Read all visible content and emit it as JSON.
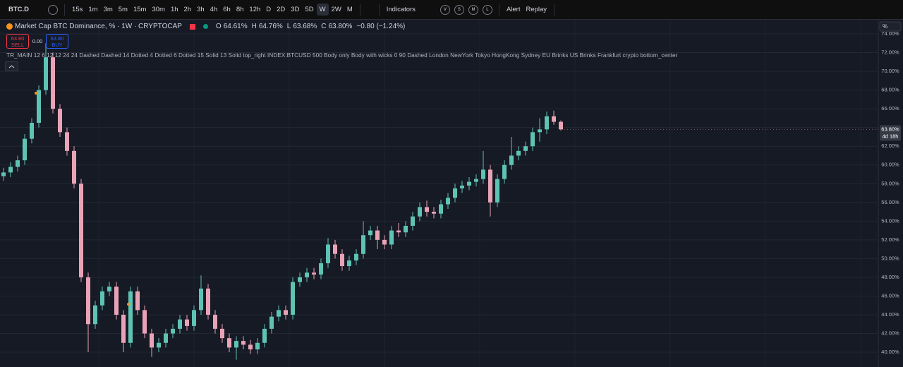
{
  "toolbar": {
    "symbol": "BTC.D",
    "intervals": [
      "15s",
      "1m",
      "3m",
      "5m",
      "15m",
      "30m",
      "1h",
      "2h",
      "3h",
      "4h",
      "6h",
      "8h",
      "12h",
      "D",
      "2D",
      "3D",
      "5D",
      "W",
      "2W",
      "M"
    ],
    "active_interval": "W",
    "indicators": "Indicators",
    "layout_buttons": [
      "V",
      "S",
      "M",
      "L"
    ],
    "alert": "Alert",
    "replay": "Replay"
  },
  "legend": {
    "title": "Market Cap BTC Dominance, % · 1W · CRYPTOCAP",
    "open_label": "O",
    "open": "64.61%",
    "high_label": "H",
    "high": "64.76%",
    "low_label": "L",
    "low": "63.68%",
    "close_label": "C",
    "close": "63.80%",
    "change": "−0.80 (−1.24%)"
  },
  "trade": {
    "sell_price": "63.80",
    "sell": "SELL",
    "spread": "0.00",
    "buy_price": "63.80",
    "buy": "BUY"
  },
  "indicator_line": "TR_MAIN 12 6 12 12 24 24 Dashed Dashed 14 Dotted 4 Dotted 6 Dotted 15 Solid 13 Solid top_right INDEX:BTCUSD 500 Body only Body with wicks 0 90 Dashed London NewYork Tokyo HongKong Sydney EU Brinks US Brinks Frankfurt crypto bottom_center",
  "price_axis": {
    "unit": "%",
    "last_price": "63.80%",
    "countdown": "4d 18h"
  },
  "chart_data": {
    "type": "candlestick",
    "up_color": "#5fc3b4",
    "down_color": "#e9a3b6",
    "grid": true,
    "ylim": [
      38.42,
      75.51
    ],
    "yticks": [
      {
        "value": 40,
        "label": "40.00%"
      },
      {
        "value": 42,
        "label": "42.00%"
      },
      {
        "value": 44,
        "label": "44.00%"
      },
      {
        "value": 46,
        "label": "46.00%"
      },
      {
        "value": 48,
        "label": "48.00%"
      },
      {
        "value": 50,
        "label": "50.00%"
      },
      {
        "value": 52,
        "label": "52.00%"
      },
      {
        "value": 54,
        "label": "54.00%"
      },
      {
        "value": 56,
        "label": "56.00%"
      },
      {
        "value": 58,
        "label": "58.00%"
      },
      {
        "value": 60,
        "label": "60.00%"
      },
      {
        "value": 62,
        "label": "62.00%"
      },
      {
        "value": 64,
        "label": "64.00%"
      },
      {
        "value": 66,
        "label": "66.00%"
      },
      {
        "value": 68,
        "label": "68.00%"
      },
      {
        "value": 70,
        "label": "70.00%"
      },
      {
        "value": 72,
        "label": "72.00%"
      },
      {
        "value": 74,
        "label": "74.00%"
      }
    ],
    "open": [
      58.8,
      59.2,
      59.8,
      60.5,
      62.8,
      64.5,
      68.0,
      71.5,
      66.0,
      63.5,
      61.5,
      58.0,
      48.0,
      43.0,
      45.0,
      46.5,
      47.0,
      44.0,
      41.0,
      46.5,
      44.5,
      42.0,
      40.5,
      41.0,
      42.0,
      42.5,
      43.5,
      42.8,
      44.5,
      46.8,
      44.0,
      42.5,
      41.5,
      40.5,
      41.2,
      40.8,
      40.3,
      41.0,
      42.5,
      43.8,
      44.5,
      44.0,
      47.5,
      48.0,
      48.5,
      48.3,
      49.5,
      51.5,
      50.5,
      49.2,
      49.8,
      50.5,
      52.5,
      53.0,
      52.0,
      51.5,
      53.0,
      52.8,
      53.5,
      54.5,
      55.5,
      55.0,
      54.8,
      55.8,
      56.5,
      57.5,
      57.8,
      58.2,
      58.5,
      59.5,
      56.0,
      58.5,
      60.0,
      61.0,
      61.5,
      62.0,
      63.5,
      63.8,
      65.2,
      64.61
    ],
    "high": [
      59.7,
      60.3,
      61.0,
      63.3,
      65.0,
      68.5,
      73.0,
      72.0,
      66.5,
      64.0,
      62.0,
      58.5,
      48.5,
      45.5,
      47.0,
      47.5,
      47.5,
      44.5,
      47.0,
      47.0,
      45.0,
      42.5,
      41.5,
      42.5,
      43.0,
      44.0,
      44.0,
      45.0,
      48.2,
      47.3,
      44.5,
      43.0,
      42.0,
      41.7,
      41.7,
      41.3,
      41.5,
      43.0,
      44.3,
      45.0,
      45.0,
      48.0,
      48.5,
      49.0,
      49.0,
      50.0,
      52.2,
      52.0,
      51.0,
      50.3,
      51.0,
      54.0,
      53.5,
      53.5,
      52.5,
      53.5,
      53.8,
      54.0,
      55.0,
      56.0,
      56.2,
      55.5,
      56.3,
      57.0,
      58.0,
      58.3,
      58.7,
      59.0,
      61.5,
      60.0,
      59.0,
      60.5,
      63.0,
      62.0,
      62.5,
      64.0,
      65.0,
      65.7,
      65.8,
      64.76
    ],
    "low": [
      58.3,
      58.7,
      59.3,
      60.0,
      62.3,
      64.0,
      67.5,
      65.5,
      63.0,
      61.0,
      57.5,
      47.5,
      40.0,
      42.5,
      44.5,
      46.0,
      43.5,
      40.0,
      40.5,
      44.0,
      41.5,
      39.5,
      40.0,
      40.5,
      41.5,
      42.0,
      42.3,
      42.3,
      44.0,
      43.5,
      42.0,
      41.0,
      40.0,
      39.2,
      40.3,
      39.8,
      39.8,
      40.5,
      42.0,
      43.3,
      43.5,
      43.5,
      47.0,
      47.5,
      47.8,
      47.8,
      49.0,
      50.0,
      48.7,
      48.7,
      49.3,
      50.0,
      52.0,
      51.0,
      51.0,
      51.0,
      52.3,
      52.3,
      53.0,
      54.0,
      54.5,
      54.3,
      54.3,
      55.3,
      56.0,
      57.0,
      57.3,
      57.7,
      58.0,
      54.5,
      55.5,
      58.0,
      59.5,
      60.5,
      61.0,
      61.5,
      62.5,
      63.3,
      64.3,
      63.68
    ],
    "close": [
      59.2,
      59.8,
      60.5,
      62.8,
      64.5,
      68.0,
      71.5,
      66.0,
      63.5,
      61.5,
      58.0,
      48.0,
      43.0,
      45.0,
      46.5,
      47.0,
      44.0,
      41.0,
      46.5,
      44.5,
      42.0,
      40.5,
      41.0,
      42.0,
      42.5,
      43.5,
      42.8,
      44.5,
      46.8,
      44.0,
      42.5,
      41.5,
      40.5,
      41.2,
      40.8,
      40.3,
      41.0,
      42.5,
      43.8,
      44.5,
      44.0,
      47.5,
      48.0,
      48.5,
      48.3,
      49.5,
      51.5,
      50.5,
      49.2,
      49.8,
      50.5,
      52.5,
      53.0,
      52.0,
      51.5,
      53.0,
      52.8,
      53.5,
      54.5,
      55.5,
      55.0,
      54.8,
      55.8,
      56.5,
      57.5,
      57.8,
      58.2,
      58.5,
      59.5,
      56.0,
      58.5,
      60.0,
      61.0,
      61.5,
      62.0,
      63.5,
      63.8,
      65.2,
      64.61,
      63.8
    ]
  }
}
